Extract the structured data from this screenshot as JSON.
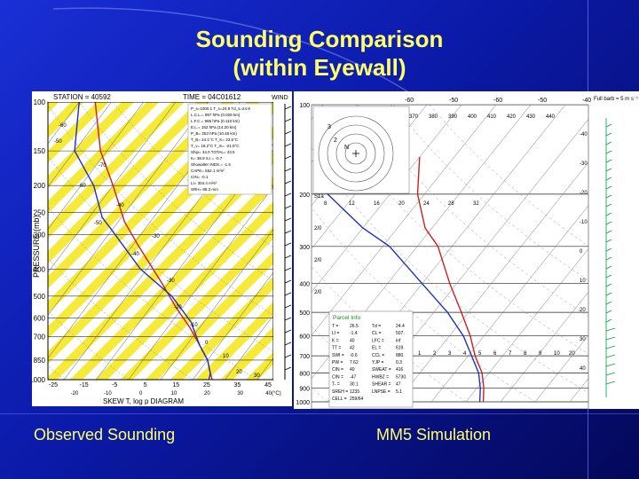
{
  "slide": {
    "title_line1": "Sounding Comparison",
    "title_line2": "(within Eyewall)",
    "caption_left": "Observed Sounding",
    "caption_right": "MM5 Simulation"
  },
  "colors": {
    "title": "#ffff66",
    "caption": "#ffff66",
    "background": "#1a2fd6",
    "stripe": "#f5e93a",
    "temperature": "#cc2020",
    "dewpoint": "#2030c0",
    "wind_barb": "#00a040"
  },
  "chart_data": [
    {
      "type": "line",
      "panel": "left",
      "header_station": "STATION = 40592",
      "header_time": "TIME = 04C01612",
      "header_wind": "WIND",
      "xlabel": "SKEW T, log p DIAGRAM",
      "ylabel": "PRESSURE (mb)",
      "y_ticks": [
        "100",
        "150",
        "200",
        "250",
        "300",
        "400",
        "500",
        "600",
        "700",
        "850",
        "1000"
      ],
      "x_ticks": [
        "-25",
        "-15",
        "-5",
        "5",
        "15",
        "25",
        "35",
        "45"
      ],
      "x_ticks_extra": [
        "-20",
        "-10",
        "0",
        "10",
        "20",
        "30",
        "40(°C)"
      ],
      "y_scale": "log",
      "grid": true,
      "series": [
        {
          "values": [
            [
              -75,
              100
            ],
            [
              -62,
              150
            ],
            [
              -50,
              200
            ],
            [
              -38,
              270
            ],
            [
              -28,
              330
            ],
            [
              -12,
              450
            ],
            [
              -2,
              550
            ],
            [
              7,
              650
            ],
            [
              14,
              750
            ],
            [
              20,
              850
            ],
            [
              24,
              950
            ],
            [
              26,
              1000
            ]
          ]
        },
        {
          "values": [
            [
              -80,
              100
            ],
            [
              -70,
              150
            ],
            [
              -56,
              200
            ],
            [
              -46,
              260
            ],
            [
              -38,
              300
            ],
            [
              -22,
              400
            ],
            [
              -6,
              500
            ],
            [
              6,
              620
            ],
            [
              14,
              750
            ],
            [
              20,
              850
            ],
            [
              24,
              950
            ],
            [
              25,
              1000
            ]
          ]
        }
      ],
      "info_box": [
        "P_s=1000.1  T_s=24.9  Td_s=24.9",
        "L.C.L.= 997 hPa (0.029 km)",
        "L.F.C.= 986 hPa (0.110 km)",
        "E.L.= 152 hPa (14.20 km)",
        "P_B= 253 hPa (10.48 km)",
        "T_B= 24.1°C  T_K= 23.5°C",
        "T_v= 18.2°C  T_m= -21.9°C",
        "Ship= 34.0  TOTAL= 43.5",
        "K= 38.9  S.I.= -0.7",
        "Showalter INDX.= -1.5",
        "CAPE= 552.1 m²s²",
        "CIN= -0.1",
        "LI= 304.4 m²s²",
        "SRH= 88.3 mm"
      ],
      "isotherm_labels": [
        "-60",
        "-50",
        "-70",
        "-60",
        "-40",
        "-50",
        "-30",
        "-40",
        "-30",
        "-20",
        "-10",
        "0",
        "10",
        "20",
        "30"
      ]
    },
    {
      "type": "line",
      "panel": "right",
      "y_ticks": [
        "100",
        "200",
        "300",
        "400",
        "500",
        "600",
        "700",
        "800",
        "900",
        "1000"
      ],
      "y_scale": "log",
      "grid": true,
      "top_labels": [
        "-60",
        "-50",
        "-60",
        "-50",
        "-40"
      ],
      "theta_labels": [
        "370",
        "380",
        "390",
        "400",
        "410",
        "420",
        "430",
        "440"
      ],
      "mixing_ratio_labels": [
        "8",
        "12",
        "16",
        "20",
        "24",
        "28",
        "32"
      ],
      "upper_left_labels": [
        "S1a",
        "2/0",
        "2/0",
        "2/0"
      ],
      "right_labels": [
        "-40",
        "-30",
        "-20",
        "-10",
        "0",
        "10",
        "20",
        "30",
        "40"
      ],
      "bottom_labels": [
        "1",
        "2",
        "3",
        "4",
        "5",
        "6",
        "7",
        "8",
        "9",
        "10",
        "20"
      ],
      "corner_label": "Full barb = 5 m s⁻¹",
      "hodograph_labels": [
        "3",
        "2",
        "N"
      ],
      "series": [
        {
          "values": [
            [
              -50,
              150
            ],
            [
              -42,
              200
            ],
            [
              -32,
              260
            ],
            [
              -24,
              300
            ],
            [
              -12,
              400
            ],
            [
              -2,
              500
            ],
            [
              6,
              600
            ],
            [
              12,
              700
            ],
            [
              18,
              800
            ],
            [
              22,
              900
            ],
            [
              25,
              1000
            ]
          ]
        },
        {
          "values": [
            [
              -80,
              150
            ],
            [
              -68,
              200
            ],
            [
              -50,
              260
            ],
            [
              -38,
              300
            ],
            [
              -20,
              400
            ],
            [
              -6,
              500
            ],
            [
              4,
              600
            ],
            [
              11,
              700
            ],
            [
              17,
              800
            ],
            [
              21,
              900
            ],
            [
              24,
              1000
            ]
          ]
        }
      ],
      "parcel_box": {
        "title": "Parcel Info",
        "rows": [
          [
            "T =",
            "26.5",
            "Td =",
            "24.4"
          ],
          [
            "LI =",
            "-1.4",
            "CL =",
            "507."
          ],
          [
            "K =",
            "40",
            "LFC =",
            "inf"
          ],
          [
            "TT =",
            "42",
            "EL =",
            "619."
          ],
          [
            "SWI =",
            "-0.6",
            "CCL =",
            "880."
          ],
          [
            "PW =",
            "7.62",
            "YJP =",
            "0.3"
          ],
          [
            "CIN =",
            "40",
            "SWEAT =",
            "416"
          ],
          [
            "CIN =",
            "-47",
            "HWBZ =",
            "5730."
          ],
          [
            "T- =",
            "30.1",
            "SHEAR =",
            "47"
          ],
          [
            "SREH =",
            "1235",
            "LNPSE =",
            "5.1"
          ],
          [
            "CELL =",
            "259/64",
            "",
            ""
          ]
        ]
      }
    }
  ]
}
